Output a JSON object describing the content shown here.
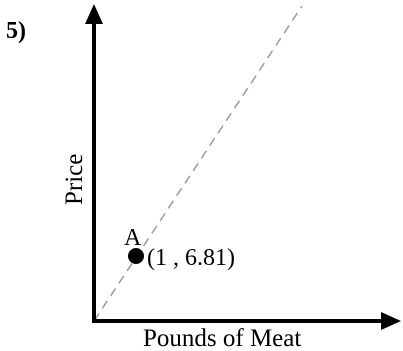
{
  "problem": {
    "number": "5)"
  },
  "axes": {
    "x_label": "Pounds of Meat",
    "y_label": "Price"
  },
  "point": {
    "name": "A",
    "coords_label": "(1 , 6.81)",
    "x": 1,
    "y": 6.81
  },
  "colors": {
    "axis": "#000000",
    "dashed_line": "#9a9a9a",
    "point": "#000000"
  },
  "line": {
    "style": "dashed",
    "passes_through": "origin"
  }
}
